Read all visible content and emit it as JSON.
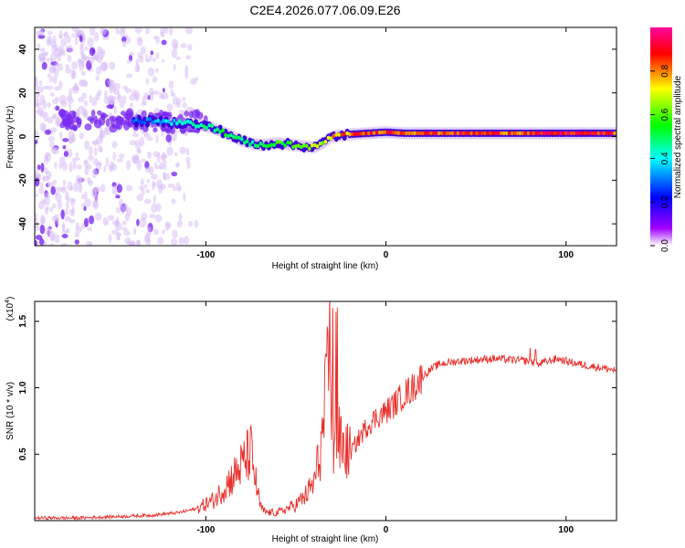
{
  "title": "C2E4.2026.077.06.09.E26",
  "colors": {
    "snr_line": "#e8302c",
    "spectrum_dot_light": "#d9bff5",
    "spectrum_dot_dark": "#7b2cf0",
    "background": "#ffffff"
  },
  "colorbar": {
    "label": "Normalized spectral amplitude",
    "range": [
      0,
      1
    ],
    "ticks": [
      0.0,
      0.2,
      0.4,
      0.6,
      0.8
    ],
    "tick_labels": [
      "0.0",
      "0.2",
      "0.4",
      "0.6",
      "0.8"
    ],
    "colormap": [
      "#ffffff",
      "#a000ff",
      "#0000ff",
      "#00ffff",
      "#00ff00",
      "#ffff00",
      "#ff0000",
      "#ff00a0"
    ]
  },
  "chart_data": [
    {
      "type": "heatmap",
      "name": "spectrogram",
      "xlabel": "Height of straight line (km)",
      "ylabel": "Frequency (Hz)",
      "xlim": [
        -195,
        128
      ],
      "ylim": [
        -50,
        50
      ],
      "xticks": [
        -100,
        0,
        100
      ],
      "xtick_labels": [
        "-100",
        "0",
        "100"
      ],
      "yticks": [
        -40,
        -20,
        0,
        20,
        40
      ],
      "ytick_labels": [
        "-40",
        "-20",
        "0",
        "20",
        "40"
      ],
      "noise_region": [
        -195,
        -105
      ],
      "ridge": {
        "x": [
          -140,
          -130,
          -120,
          -110,
          -100,
          -90,
          -80,
          -70,
          -60,
          -50,
          -40,
          -35,
          -30,
          -20,
          -10,
          0,
          10,
          20,
          40,
          60,
          80,
          100,
          128
        ],
        "y": [
          7,
          7,
          6.5,
          6,
          5,
          2,
          -2,
          -4,
          -3,
          -4,
          -5,
          -3,
          0,
          1,
          1.5,
          2,
          1.5,
          1.5,
          1.5,
          1.5,
          1.5,
          1.5,
          1.5
        ],
        "amplitude": [
          0.3,
          0.35,
          0.4,
          0.45,
          0.5,
          0.55,
          0.5,
          0.5,
          0.6,
          0.6,
          0.7,
          0.65,
          0.8,
          0.85,
          0.9,
          0.92,
          0.9,
          0.9,
          0.9,
          0.9,
          0.9,
          0.95,
          0.9
        ]
      }
    },
    {
      "type": "line",
      "name": "snr",
      "xlabel": "Height of straight line (km)",
      "ylabel": "SNR (10 * v/v)",
      "y_multiplier": "(x10",
      "y_multiplier_exp": "4",
      "y_multiplier_close": ")",
      "xlim": [
        -195,
        128
      ],
      "ylim": [
        0,
        1.65
      ],
      "xticks": [
        -100,
        0,
        100
      ],
      "xtick_labels": [
        "-100",
        "0",
        "100"
      ],
      "yticks": [
        0.5,
        1.0,
        1.5
      ],
      "ytick_labels": [
        "0.5",
        "1.0",
        "1.5"
      ],
      "series": [
        {
          "name": "SNR",
          "x": [
            -195,
            -170,
            -150,
            -130,
            -115,
            -105,
            -95,
            -88,
            -82,
            -78,
            -75,
            -73,
            -70,
            -68,
            -65,
            -60,
            -55,
            -50,
            -45,
            -40,
            -36,
            -33,
            -31,
            -29,
            -27,
            -24,
            -20,
            -15,
            -10,
            -5,
            0,
            5,
            10,
            15,
            20,
            25,
            30,
            40,
            50,
            60,
            70,
            80,
            85,
            90,
            95,
            100,
            110,
            120,
            128
          ],
          "y": [
            0.02,
            0.02,
            0.03,
            0.04,
            0.06,
            0.09,
            0.16,
            0.28,
            0.38,
            0.46,
            0.52,
            0.35,
            0.12,
            0.07,
            0.06,
            0.06,
            0.09,
            0.12,
            0.18,
            0.28,
            0.55,
            0.95,
            1.35,
            0.45,
            0.62,
            0.55,
            0.5,
            0.62,
            0.72,
            0.78,
            0.82,
            0.88,
            0.95,
            1.0,
            1.08,
            1.14,
            1.18,
            1.2,
            1.21,
            1.22,
            1.21,
            1.2,
            1.18,
            1.2,
            1.22,
            1.2,
            1.17,
            1.15,
            1.13
          ]
        }
      ]
    }
  ]
}
